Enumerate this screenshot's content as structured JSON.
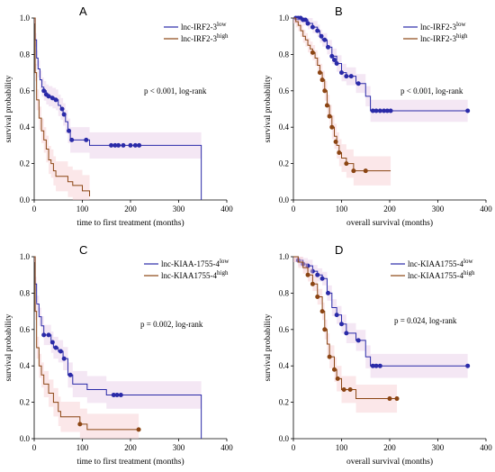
{
  "chart_data": [
    {
      "type": "line",
      "panel": "A",
      "xlabel": "time to first treatment (months)",
      "ylabel": "survival probability",
      "xlim": [
        0,
        400
      ],
      "ylim": [
        0,
        1.0
      ],
      "xticks": [
        "0",
        "100",
        "200",
        "300",
        "400"
      ],
      "yticks": [
        "0.0",
        "0.2",
        "0.4",
        "0.6",
        "0.8",
        "1.0"
      ],
      "annotation": "p < 0.001, log-rank",
      "legend_position": "top-right",
      "series": [
        {
          "name": "lnc-IRF2-3",
          "sup": "low",
          "color": "#2a2aa8",
          "steps": [
            [
              0,
              1.0
            ],
            [
              2,
              0.88
            ],
            [
              5,
              0.78
            ],
            [
              8,
              0.72
            ],
            [
              12,
              0.66
            ],
            [
              16,
              0.62
            ],
            [
              20,
              0.6
            ],
            [
              25,
              0.58
            ],
            [
              30,
              0.57
            ],
            [
              38,
              0.56
            ],
            [
              45,
              0.55
            ],
            [
              50,
              0.52
            ],
            [
              55,
              0.5
            ],
            [
              60,
              0.47
            ],
            [
              65,
              0.43
            ],
            [
              70,
              0.38
            ],
            [
              75,
              0.33
            ],
            [
              90,
              0.33
            ],
            [
              115,
              0.3
            ],
            [
              347,
              0.3
            ],
            [
              347,
              0.0
            ]
          ],
          "censored": [
            [
              20,
              0.6
            ],
            [
              25,
              0.58
            ],
            [
              30,
              0.57
            ],
            [
              38,
              0.56
            ],
            [
              45,
              0.55
            ],
            [
              58,
              0.5
            ],
            [
              62,
              0.47
            ],
            [
              72,
              0.38
            ],
            [
              78,
              0.33
            ],
            [
              108,
              0.33
            ],
            [
              160,
              0.3
            ],
            [
              168,
              0.3
            ],
            [
              175,
              0.3
            ],
            [
              185,
              0.3
            ],
            [
              200,
              0.3
            ],
            [
              210,
              0.3
            ],
            [
              218,
              0.3
            ]
          ]
        },
        {
          "name": "lnc-IRF2-3",
          "sup": "high",
          "color": "#8b4513",
          "steps": [
            [
              0,
              1.0
            ],
            [
              2,
              0.7
            ],
            [
              5,
              0.55
            ],
            [
              10,
              0.45
            ],
            [
              15,
              0.38
            ],
            [
              20,
              0.33
            ],
            [
              25,
              0.28
            ],
            [
              30,
              0.22
            ],
            [
              35,
              0.2
            ],
            [
              40,
              0.16
            ],
            [
              45,
              0.13
            ],
            [
              60,
              0.13
            ],
            [
              70,
              0.1
            ],
            [
              80,
              0.08
            ],
            [
              100,
              0.05
            ],
            [
              115,
              0.02
            ]
          ],
          "censored": []
        }
      ]
    },
    {
      "type": "line",
      "panel": "B",
      "xlabel": "overall survival (months)",
      "ylabel": "survival probability",
      "xlim": [
        0,
        400
      ],
      "ylim": [
        0,
        1.0
      ],
      "xticks": [
        "0",
        "100",
        "200",
        "300",
        "400"
      ],
      "yticks": [
        "0.0",
        "0.2",
        "0.4",
        "0.6",
        "0.8",
        "1.0"
      ],
      "annotation": "p < 0.001, log-rank",
      "legend_position": "top-right",
      "series": [
        {
          "name": "lnc-IRF2-3",
          "sup": "low",
          "color": "#2a2aa8",
          "steps": [
            [
              0,
              1.0
            ],
            [
              15,
              1.0
            ],
            [
              20,
              0.99
            ],
            [
              30,
              0.97
            ],
            [
              40,
              0.95
            ],
            [
              50,
              0.93
            ],
            [
              55,
              0.9
            ],
            [
              60,
              0.88
            ],
            [
              70,
              0.84
            ],
            [
              80,
              0.79
            ],
            [
              90,
              0.75
            ],
            [
              100,
              0.7
            ],
            [
              110,
              0.68
            ],
            [
              130,
              0.64
            ],
            [
              150,
              0.57
            ],
            [
              160,
              0.49
            ],
            [
              362,
              0.49
            ]
          ],
          "censored": [
            [
              5,
              1.0
            ],
            [
              10,
              1.0
            ],
            [
              15,
              1.0
            ],
            [
              20,
              0.99
            ],
            [
              25,
              0.99
            ],
            [
              30,
              0.97
            ],
            [
              40,
              0.95
            ],
            [
              50,
              0.93
            ],
            [
              58,
              0.9
            ],
            [
              65,
              0.88
            ],
            [
              72,
              0.84
            ],
            [
              80,
              0.79
            ],
            [
              85,
              0.77
            ],
            [
              90,
              0.75
            ],
            [
              100,
              0.7
            ],
            [
              110,
              0.68
            ],
            [
              120,
              0.68
            ],
            [
              135,
              0.64
            ],
            [
              165,
              0.49
            ],
            [
              172,
              0.49
            ],
            [
              180,
              0.49
            ],
            [
              188,
              0.49
            ],
            [
              195,
              0.49
            ],
            [
              202,
              0.49
            ],
            [
              362,
              0.49
            ]
          ]
        },
        {
          "name": "lnc-IRF2-3",
          "sup": "high",
          "color": "#8b4513",
          "steps": [
            [
              0,
              1.0
            ],
            [
              5,
              0.98
            ],
            [
              10,
              0.96
            ],
            [
              15,
              0.93
            ],
            [
              20,
              0.9
            ],
            [
              25,
              0.88
            ],
            [
              30,
              0.85
            ],
            [
              35,
              0.83
            ],
            [
              40,
              0.81
            ],
            [
              45,
              0.78
            ],
            [
              50,
              0.74
            ],
            [
              55,
              0.7
            ],
            [
              60,
              0.66
            ],
            [
              65,
              0.6
            ],
            [
              70,
              0.52
            ],
            [
              75,
              0.46
            ],
            [
              80,
              0.4
            ],
            [
              85,
              0.35
            ],
            [
              90,
              0.3
            ],
            [
              95,
              0.26
            ],
            [
              100,
              0.23
            ],
            [
              110,
              0.2
            ],
            [
              125,
              0.16
            ],
            [
              202,
              0.16
            ]
          ],
          "censored": [
            [
              40,
              0.81
            ],
            [
              55,
              0.7
            ],
            [
              60,
              0.66
            ],
            [
              65,
              0.6
            ],
            [
              70,
              0.52
            ],
            [
              75,
              0.46
            ],
            [
              80,
              0.4
            ],
            [
              88,
              0.32
            ],
            [
              95,
              0.26
            ],
            [
              110,
              0.2
            ],
            [
              125,
              0.16
            ],
            [
              150,
              0.16
            ]
          ]
        }
      ]
    },
    {
      "type": "line",
      "panel": "C",
      "xlabel": "time to first treatment (months)",
      "ylabel": "survival probability",
      "xlim": [
        0,
        400
      ],
      "ylim": [
        0,
        1.0
      ],
      "xticks": [
        "0",
        "100",
        "200",
        "300",
        "400"
      ],
      "yticks": [
        "0.0",
        "0.2",
        "0.4",
        "0.6",
        "0.8",
        "1.0"
      ],
      "annotation": "p = 0.002, log-rank",
      "legend_position": "top-right",
      "series": [
        {
          "name": "lnc-KIAA-1755-4",
          "sup": "low",
          "color": "#2a2aa8",
          "steps": [
            [
              0,
              1.0
            ],
            [
              2,
              0.85
            ],
            [
              5,
              0.74
            ],
            [
              10,
              0.67
            ],
            [
              15,
              0.62
            ],
            [
              20,
              0.57
            ],
            [
              30,
              0.57
            ],
            [
              35,
              0.53
            ],
            [
              40,
              0.5
            ],
            [
              50,
              0.48
            ],
            [
              60,
              0.44
            ],
            [
              70,
              0.35
            ],
            [
              80,
              0.3
            ],
            [
              100,
              0.3
            ],
            [
              110,
              0.27
            ],
            [
              150,
              0.24
            ],
            [
              347,
              0.24
            ],
            [
              347,
              0.0
            ]
          ],
          "censored": [
            [
              20,
              0.57
            ],
            [
              30,
              0.57
            ],
            [
              38,
              0.53
            ],
            [
              45,
              0.5
            ],
            [
              55,
              0.48
            ],
            [
              62,
              0.44
            ],
            [
              75,
              0.35
            ],
            [
              165,
              0.24
            ],
            [
              172,
              0.24
            ],
            [
              180,
              0.24
            ]
          ]
        },
        {
          "name": "lnc-KIAA1755-4",
          "sup": "high",
          "color": "#8b4513",
          "steps": [
            [
              0,
              1.0
            ],
            [
              2,
              0.7
            ],
            [
              5,
              0.5
            ],
            [
              10,
              0.4
            ],
            [
              15,
              0.35
            ],
            [
              20,
              0.3
            ],
            [
              30,
              0.25
            ],
            [
              40,
              0.2
            ],
            [
              50,
              0.15
            ],
            [
              55,
              0.12
            ],
            [
              90,
              0.12
            ],
            [
              95,
              0.08
            ],
            [
              110,
              0.05
            ],
            [
              217,
              0.05
            ]
          ],
          "censored": [
            [
              95,
              0.08
            ],
            [
              217,
              0.05
            ]
          ]
        }
      ]
    },
    {
      "type": "line",
      "panel": "D",
      "xlabel": "overall survival (months)",
      "ylabel": "survival probability",
      "xlim": [
        0,
        400
      ],
      "ylim": [
        0,
        1.0
      ],
      "xticks": [
        "0",
        "100",
        "200",
        "300",
        "400"
      ],
      "yticks": [
        "0.0",
        "0.2",
        "0.4",
        "0.6",
        "0.8",
        "1.0"
      ],
      "annotation": "p = 0.024, log-rank",
      "legend_position": "top-right",
      "series": [
        {
          "name": "lnc-KIAA1755-4",
          "sup": "low",
          "color": "#2a2aa8",
          "steps": [
            [
              0,
              1.0
            ],
            [
              10,
              0.98
            ],
            [
              20,
              0.96
            ],
            [
              30,
              0.95
            ],
            [
              40,
              0.92
            ],
            [
              50,
              0.9
            ],
            [
              60,
              0.88
            ],
            [
              70,
              0.8
            ],
            [
              80,
              0.72
            ],
            [
              90,
              0.68
            ],
            [
              100,
              0.63
            ],
            [
              110,
              0.58
            ],
            [
              130,
              0.54
            ],
            [
              150,
              0.45
            ],
            [
              160,
              0.4
            ],
            [
              362,
              0.4
            ]
          ],
          "censored": [
            [
              10,
              0.98
            ],
            [
              20,
              0.96
            ],
            [
              30,
              0.95
            ],
            [
              40,
              0.92
            ],
            [
              50,
              0.9
            ],
            [
              60,
              0.88
            ],
            [
              72,
              0.8
            ],
            [
              90,
              0.68
            ],
            [
              100,
              0.63
            ],
            [
              110,
              0.58
            ],
            [
              135,
              0.54
            ],
            [
              165,
              0.4
            ],
            [
              172,
              0.4
            ],
            [
              180,
              0.4
            ],
            [
              362,
              0.4
            ]
          ]
        },
        {
          "name": "lnc-KIAA1755-4",
          "sup": "high",
          "color": "#8b4513",
          "steps": [
            [
              0,
              1.0
            ],
            [
              10,
              0.97
            ],
            [
              20,
              0.94
            ],
            [
              30,
              0.9
            ],
            [
              40,
              0.85
            ],
            [
              50,
              0.78
            ],
            [
              60,
              0.7
            ],
            [
              65,
              0.6
            ],
            [
              70,
              0.52
            ],
            [
              75,
              0.45
            ],
            [
              85,
              0.38
            ],
            [
              90,
              0.33
            ],
            [
              100,
              0.27
            ],
            [
              120,
              0.27
            ],
            [
              130,
              0.22
            ],
            [
              215,
              0.22
            ]
          ],
          "censored": [
            [
              30,
              0.9
            ],
            [
              40,
              0.85
            ],
            [
              50,
              0.78
            ],
            [
              60,
              0.7
            ],
            [
              65,
              0.6
            ],
            [
              75,
              0.45
            ],
            [
              85,
              0.38
            ],
            [
              92,
              0.33
            ],
            [
              105,
              0.27
            ],
            [
              118,
              0.27
            ],
            [
              200,
              0.22
            ],
            [
              215,
              0.22
            ]
          ]
        }
      ]
    }
  ]
}
